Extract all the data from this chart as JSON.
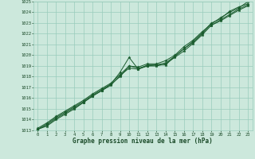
{
  "title": "Graphe pression niveau de la mer (hPa)",
  "bg_color": "#cce8dc",
  "grid_color": "#99ccbb",
  "line_color": "#1a5c2e",
  "text_color": "#1a4a28",
  "xlim": [
    -0.5,
    23.5
  ],
  "ylim": [
    1013,
    1025
  ],
  "xticks": [
    0,
    1,
    2,
    3,
    4,
    5,
    6,
    7,
    8,
    9,
    10,
    11,
    12,
    13,
    14,
    15,
    16,
    17,
    18,
    19,
    20,
    21,
    22,
    23
  ],
  "yticks": [
    1013,
    1014,
    1015,
    1016,
    1017,
    1018,
    1019,
    1020,
    1021,
    1022,
    1023,
    1024,
    1025
  ],
  "series": [
    [
      1013.1,
      1013.6,
      1014.2,
      1014.7,
      1015.2,
      1015.7,
      1016.3,
      1016.8,
      1017.3,
      1018.4,
      1019.8,
      1018.7,
      1019.1,
      1019.1,
      1019.1,
      1019.9,
      1020.6,
      1021.3,
      1022.1,
      1023.0,
      1023.4,
      1024.1,
      1024.5,
      1024.8
    ],
    [
      1013.1,
      1013.4,
      1014.0,
      1014.5,
      1015.0,
      1015.6,
      1016.2,
      1016.7,
      1017.3,
      1018.0,
      1019.0,
      1018.8,
      1019.0,
      1019.0,
      1019.2,
      1019.8,
      1020.4,
      1021.1,
      1021.9,
      1022.8,
      1023.2,
      1023.7,
      1024.2,
      1024.6
    ],
    [
      1013.2,
      1013.7,
      1014.3,
      1014.8,
      1015.3,
      1015.8,
      1016.4,
      1016.9,
      1017.4,
      1018.2,
      1019.0,
      1018.9,
      1019.2,
      1019.2,
      1019.5,
      1020.0,
      1020.8,
      1021.4,
      1022.2,
      1022.9,
      1023.5,
      1024.0,
      1024.4,
      1025.0
    ],
    [
      1013.1,
      1013.5,
      1014.1,
      1014.6,
      1015.1,
      1015.6,
      1016.2,
      1016.7,
      1017.2,
      1018.1,
      1018.8,
      1018.7,
      1019.0,
      1019.1,
      1019.3,
      1019.9,
      1020.6,
      1021.2,
      1022.0,
      1022.8,
      1023.3,
      1023.8,
      1024.3,
      1024.7
    ]
  ]
}
